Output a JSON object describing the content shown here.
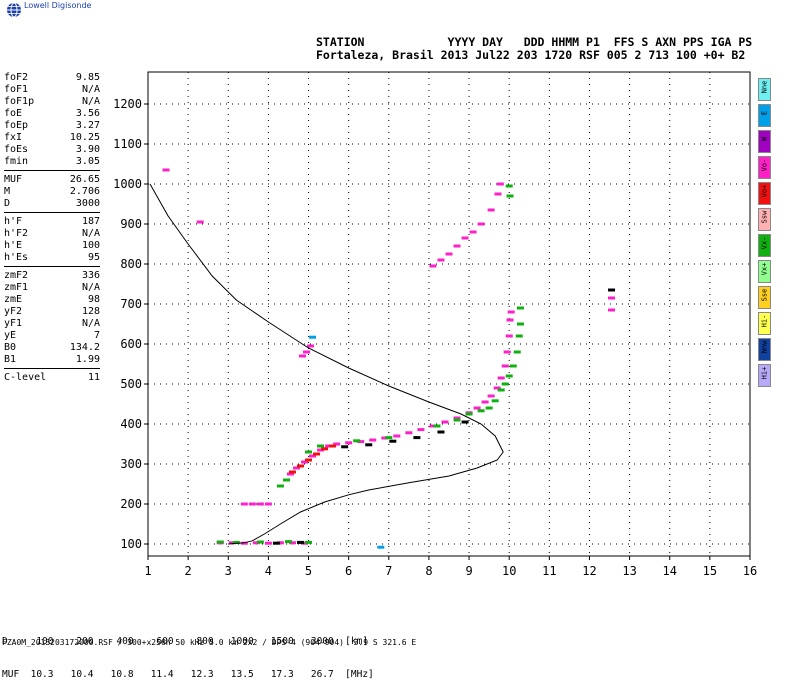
{
  "brand": {
    "name": "Lowell Digisonde",
    "logo_icon": "globe-icon"
  },
  "header": {
    "line1": "STATION            YYYY DAY   DDD HHMM P1  FFS S AXN PPS IGA PS",
    "line2": "Fortaleza, Brasil 2013 Jul22 203 1720 RSF 005 2 713 100 +0+ B2"
  },
  "params": [
    [
      {
        "k": "foF2",
        "v": "9.85"
      },
      {
        "k": "foF1",
        "v": "N/A"
      },
      {
        "k": "foF1p",
        "v": "N/A"
      },
      {
        "k": "foE",
        "v": "3.56"
      },
      {
        "k": "foEp",
        "v": "3.27"
      },
      {
        "k": "fxI",
        "v": "10.25"
      },
      {
        "k": "foEs",
        "v": "3.90"
      },
      {
        "k": "fmin",
        "v": "3.05"
      }
    ],
    [
      {
        "k": "MUF",
        "v": "26.65"
      },
      {
        "k": "M",
        "v": "2.706"
      },
      {
        "k": "D",
        "v": "3000"
      }
    ],
    [
      {
        "k": "h'F",
        "v": "187"
      },
      {
        "k": "h'F2",
        "v": "N/A"
      },
      {
        "k": "h'E",
        "v": "100"
      },
      {
        "k": "h'Es",
        "v": "95"
      }
    ],
    [
      {
        "k": "zmF2",
        "v": "336"
      },
      {
        "k": "zmF1",
        "v": "N/A"
      },
      {
        "k": "zmE",
        "v": "98"
      },
      {
        "k": "yF2",
        "v": "128"
      },
      {
        "k": "yF1",
        "v": "N/A"
      },
      {
        "k": "yE",
        "v": "7"
      },
      {
        "k": "B0",
        "v": "134.2"
      },
      {
        "k": "B1",
        "v": "1.99"
      }
    ],
    [
      {
        "k": "C-level",
        "v": "11"
      }
    ]
  ],
  "legend": [
    {
      "label": "Nne",
      "color": "#6ff0f0"
    },
    {
      "label": "E",
      "color": "#00a0e8"
    },
    {
      "label": "W",
      "color": "#a000c0"
    },
    {
      "label": "Vo-",
      "color": "#ff20c8"
    },
    {
      "label": "Vo+",
      "color": "#f01010"
    },
    {
      "label": "Ssw",
      "color": "#ffb0b0"
    },
    {
      "label": "Vx-",
      "color": "#10b010"
    },
    {
      "label": "Vx+",
      "color": "#90ff90"
    },
    {
      "label": "Sse",
      "color": "#ffd020"
    },
    {
      "label": "Hi-",
      "color": "#ffff50"
    },
    {
      "label": "Nnw",
      "color": "#1040a0"
    },
    {
      "label": "Hi+",
      "color": "#b8a8f8"
    }
  ],
  "footer": {
    "line1": "D     100    200    400    600    800   1000   1500   3000  [km]",
    "line2": "MUF  10.3   10.4   10.8   11.4   12.3   13.5   17.3   26.7  [MHz]",
    "note": "FZA0M_2013203172000.RSF / 300+x256h 50 kHz 5.0 km 2x2 / DPS-4 (904-904)  3.9 S 321.6 E"
  },
  "chart_data": {
    "type": "scatter",
    "title": "",
    "xlabel": "",
    "ylabel": "",
    "xlim": [
      1,
      16
    ],
    "ylim": [
      70,
      1280
    ],
    "x_ticks": [
      1,
      2,
      3,
      4,
      5,
      6,
      7,
      8,
      9,
      10,
      11,
      12,
      13,
      14,
      15,
      16
    ],
    "y_ticks": [
      100,
      200,
      300,
      400,
      500,
      600,
      700,
      800,
      900,
      1000,
      1100,
      1200
    ],
    "grid": true,
    "profile": {
      "color": "#000000",
      "points": [
        [
          1.05,
          1000
        ],
        [
          1.5,
          920
        ],
        [
          2.0,
          850
        ],
        [
          2.6,
          770
        ],
        [
          3.2,
          710
        ],
        [
          4.0,
          655
        ],
        [
          5.0,
          590
        ],
        [
          6.0,
          540
        ],
        [
          7.0,
          495
        ],
        [
          8.0,
          455
        ],
        [
          8.8,
          425
        ],
        [
          9.3,
          400
        ],
        [
          9.65,
          370
        ],
        [
          9.85,
          330
        ],
        [
          9.7,
          310
        ],
        [
          9.2,
          290
        ],
        [
          8.5,
          270
        ],
        [
          7.5,
          253
        ],
        [
          6.5,
          235
        ],
        [
          6.0,
          223
        ],
        [
          5.4,
          205
        ],
        [
          4.8,
          180
        ],
        [
          4.3,
          150
        ],
        [
          3.9,
          125
        ],
        [
          3.6,
          108
        ],
        [
          3.4,
          103
        ],
        [
          3.0,
          100
        ]
      ]
    },
    "series": [
      {
        "color": "#ff20c8",
        "points": [
          [
            2.8,
            103
          ],
          [
            3.1,
            103
          ],
          [
            3.4,
            102
          ],
          [
            3.7,
            103
          ],
          [
            4.0,
            102
          ],
          [
            4.3,
            103
          ],
          [
            4.6,
            103
          ],
          [
            4.9,
            102
          ],
          [
            3.4,
            200
          ],
          [
            3.6,
            200
          ],
          [
            3.8,
            200
          ],
          [
            4.0,
            200
          ],
          [
            4.55,
            275
          ],
          [
            4.7,
            290
          ],
          [
            4.9,
            305
          ],
          [
            5.1,
            320
          ],
          [
            5.3,
            335
          ],
          [
            5.5,
            345
          ],
          [
            5.7,
            350
          ],
          [
            6.0,
            353
          ],
          [
            6.3,
            356
          ],
          [
            6.6,
            360
          ],
          [
            6.9,
            365
          ],
          [
            7.2,
            370
          ],
          [
            7.5,
            378
          ],
          [
            7.8,
            386
          ],
          [
            8.1,
            395
          ],
          [
            8.4,
            405
          ],
          [
            8.7,
            415
          ],
          [
            9.0,
            428
          ],
          [
            9.2,
            440
          ],
          [
            9.4,
            455
          ],
          [
            9.55,
            470
          ],
          [
            9.7,
            490
          ],
          [
            9.8,
            515
          ],
          [
            9.9,
            545
          ],
          [
            9.95,
            580
          ],
          [
            10.0,
            620
          ],
          [
            10.02,
            660
          ],
          [
            10.05,
            680
          ],
          [
            4.85,
            570
          ],
          [
            4.95,
            580
          ],
          [
            5.05,
            595
          ],
          [
            8.1,
            795
          ],
          [
            8.3,
            810
          ],
          [
            8.5,
            825
          ],
          [
            8.7,
            845
          ],
          [
            8.9,
            865
          ],
          [
            9.1,
            880
          ],
          [
            9.3,
            900
          ],
          [
            9.55,
            935
          ],
          [
            9.72,
            975
          ],
          [
            9.78,
            1000
          ],
          [
            1.45,
            1035
          ],
          [
            12.55,
            715
          ],
          [
            12.55,
            685
          ],
          [
            2.3,
            905
          ]
        ]
      },
      {
        "color": "#f01010",
        "points": [
          [
            4.6,
            280
          ],
          [
            4.8,
            295
          ],
          [
            5.0,
            310
          ],
          [
            5.2,
            325
          ],
          [
            5.4,
            338
          ],
          [
            5.6,
            345
          ]
        ]
      },
      {
        "color": "#10b010",
        "points": [
          [
            2.8,
            105
          ],
          [
            3.2,
            104
          ],
          [
            3.8,
            105
          ],
          [
            4.5,
            106
          ],
          [
            5.0,
            104
          ],
          [
            4.3,
            245
          ],
          [
            4.45,
            260
          ],
          [
            5.0,
            330
          ],
          [
            5.3,
            345
          ],
          [
            6.2,
            358
          ],
          [
            7.0,
            366
          ],
          [
            8.2,
            395
          ],
          [
            8.7,
            410
          ],
          [
            9.0,
            425
          ],
          [
            9.3,
            433
          ],
          [
            9.5,
            440
          ],
          [
            9.65,
            458
          ],
          [
            9.8,
            485
          ],
          [
            9.9,
            500
          ],
          [
            10.0,
            520
          ],
          [
            10.1,
            545
          ],
          [
            10.2,
            580
          ],
          [
            10.25,
            620
          ],
          [
            10.28,
            650
          ],
          [
            10.28,
            690
          ],
          [
            10.0,
            995
          ],
          [
            10.02,
            970
          ]
        ]
      },
      {
        "color": "#000000",
        "points": [
          [
            5.9,
            343
          ],
          [
            6.5,
            348
          ],
          [
            7.1,
            357
          ],
          [
            7.7,
            366
          ],
          [
            8.3,
            380
          ],
          [
            8.9,
            405
          ],
          [
            12.55,
            735
          ],
          [
            4.2,
            102
          ],
          [
            4.8,
            104
          ]
        ]
      },
      {
        "color": "#00a0e8",
        "points": [
          [
            6.8,
            92
          ],
          [
            5.1,
            617
          ]
        ]
      }
    ]
  }
}
